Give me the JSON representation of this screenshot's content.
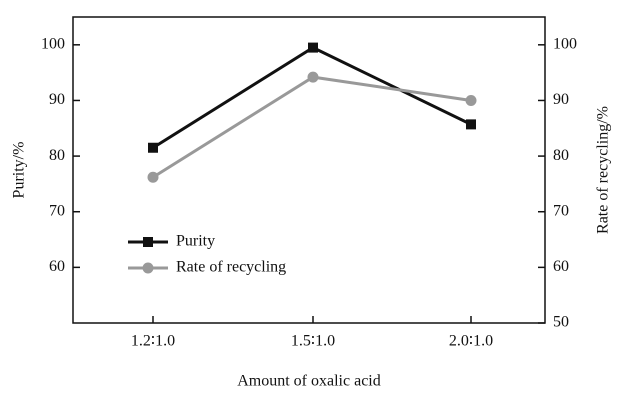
{
  "chart_data": {
    "type": "line",
    "x_label": "Amount of oxalic acid",
    "y_label": "Purity/%",
    "y2_label": "Rate of recycling/%",
    "categories": [
      "1.2∶1.0",
      "1.5∶1.0",
      "2.0∶1.0"
    ],
    "series": [
      {
        "name": "Purity",
        "color": "#111111",
        "marker": "square",
        "values": [
          81.5,
          99.5,
          85.7
        ]
      },
      {
        "name": "Rate of recycling",
        "color": "#999999",
        "marker": "circle",
        "axis": "y2",
        "values": [
          76.2,
          94.2,
          90
        ]
      }
    ],
    "ylim": [
      50,
      105
    ],
    "yticks": [
      60,
      70,
      80,
      90,
      100
    ],
    "y2lim": [
      50,
      105
    ],
    "y2ticks": [
      50,
      60,
      70,
      80,
      90,
      100
    ],
    "legend": "lower-left"
  }
}
